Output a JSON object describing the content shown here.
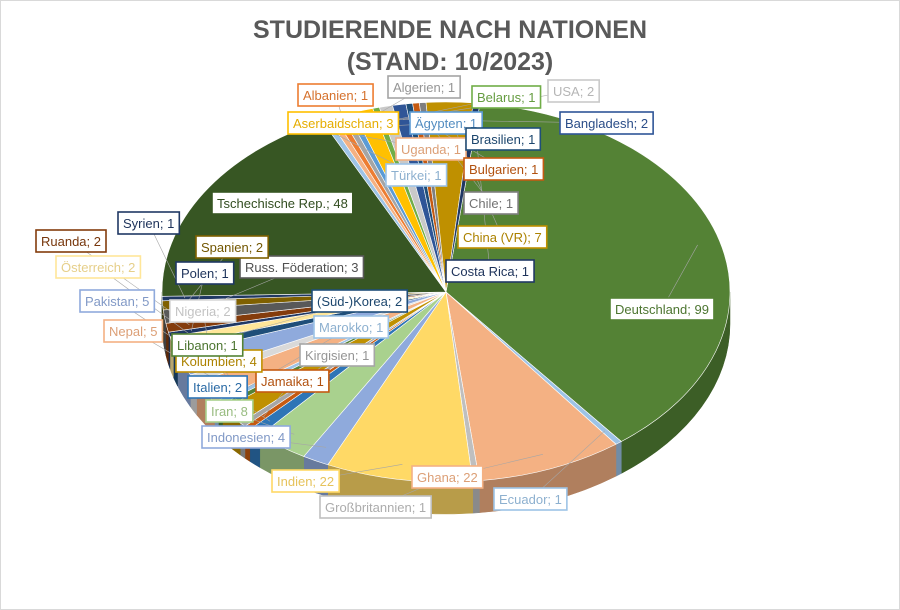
{
  "chart_data": {
    "type": "pie",
    "title_line1": "STUDIERENDE NACH NATIONEN",
    "title_line2": "(STAND: 10/2023)",
    "legend": "none",
    "slices": [
      {
        "label": "Deutschland",
        "value": 99,
        "color": "#548235",
        "text": "Deutschland; 99"
      },
      {
        "label": "Ecuador",
        "value": 1,
        "color": "#9dc3e6",
        "text": "Ecuador; 1"
      },
      {
        "label": "Ghana",
        "value": 22,
        "color": "#f4b183",
        "text": "Ghana; 22"
      },
      {
        "label": "Großbritannien",
        "value": 1,
        "color": "#bfbfbf",
        "text": "Großbritannien; 1"
      },
      {
        "label": "Indien",
        "value": 22,
        "color": "#ffd966",
        "text": "Indien; 22"
      },
      {
        "label": "Indonesien",
        "value": 4,
        "color": "#8faadc",
        "text": "Indonesien; 4"
      },
      {
        "label": "Iran",
        "value": 8,
        "color": "#a9d18e",
        "text": "Iran; 8"
      },
      {
        "label": "Italien",
        "value": 2,
        "color": "#2e75b6",
        "text": "Italien; 2"
      },
      {
        "label": "Jamaika",
        "value": 1,
        "color": "#c55a11",
        "text": "Jamaika; 1"
      },
      {
        "label": "Kirgisien",
        "value": 1,
        "color": "#a6a6a6",
        "text": "Kirgisien; 1"
      },
      {
        "label": "Kolumbien",
        "value": 4,
        "color": "#bf9000",
        "text": "Kolumbien; 4"
      },
      {
        "label": "Libanon",
        "value": 1,
        "color": "#548235",
        "text": "Libanon; 1"
      },
      {
        "label": "Marokko",
        "value": 1,
        "color": "#9dc3e6",
        "text": "Marokko; 1"
      },
      {
        "label": "Nepal",
        "value": 5,
        "color": "#f4b183",
        "text": "Nepal; 5"
      },
      {
        "label": "Nigeria",
        "value": 2,
        "color": "#d9d9d9",
        "text": "Nigeria; 2"
      },
      {
        "label": "Pakistan",
        "value": 5,
        "color": "#8faadc",
        "text": "Pakistan; 5"
      },
      {
        "label": "(Süd-)Korea",
        "value": 2,
        "color": "#1f4e79",
        "text": "(Süd-)Korea; 2"
      },
      {
        "label": "Österreich",
        "value": 2,
        "color": "#ffe699",
        "text": "Österreich; 2"
      },
      {
        "label": "Polen",
        "value": 1,
        "color": "#203864",
        "text": "Polen; 1"
      },
      {
        "label": "Ruanda",
        "value": 2,
        "color": "#843c0c",
        "text": "Ruanda; 2"
      },
      {
        "label": "Russ. Föderation",
        "value": 3,
        "color": "#595959",
        "text": "Russ. Föderation; 3"
      },
      {
        "label": "Spanien",
        "value": 2,
        "color": "#7f6000",
        "text": "Spanien; 2"
      },
      {
        "label": "Syrien",
        "value": 1,
        "color": "#203864",
        "text": "Syrien; 1"
      },
      {
        "label": "Tschechische Rep.",
        "value": 48,
        "color": "#375623",
        "text": "Tschechische Rep.; 48"
      },
      {
        "label": "Türkei",
        "value": 1,
        "color": "#9dc3e6",
        "text": "Türkei; 1"
      },
      {
        "label": "Uganda",
        "value": 1,
        "color": "#f4b183",
        "text": "Uganda; 1"
      },
      {
        "label": "Albanien",
        "value": 1,
        "color": "#ed7d31",
        "text": "Albanien; 1"
      },
      {
        "label": "Algerien",
        "value": 1,
        "color": "#a5a5a5",
        "text": "Algerien; 1"
      },
      {
        "label": "Ägypten",
        "value": 1,
        "color": "#5b9bd5",
        "text": "Ägypten; 1"
      },
      {
        "label": "Aserbaidschan",
        "value": 3,
        "color": "#ffc000",
        "text": "Aserbaidschan; 3"
      },
      {
        "label": "Belarus",
        "value": 1,
        "color": "#70ad47",
        "text": "Belarus; 1"
      },
      {
        "label": "USA",
        "value": 2,
        "color": "#c9c9c9",
        "text": "USA; 2"
      },
      {
        "label": "Bangladesh",
        "value": 2,
        "color": "#2f5597",
        "text": "Bangladesh; 2"
      },
      {
        "label": "Brasilien",
        "value": 1,
        "color": "#1f4e79",
        "text": "Brasilien; 1"
      },
      {
        "label": "Bulgarien",
        "value": 1,
        "color": "#c55a11",
        "text": "Bulgarien; 1"
      },
      {
        "label": "Chile",
        "value": 1,
        "color": "#7f7f7f",
        "text": "Chile; 1"
      },
      {
        "label": "China (VR)",
        "value": 7,
        "color": "#bf9000",
        "text": "China (VR); 7"
      },
      {
        "label": "Costa Rica",
        "value": 1,
        "color": "#203864",
        "text": "Costa Rica; 1"
      }
    ]
  }
}
